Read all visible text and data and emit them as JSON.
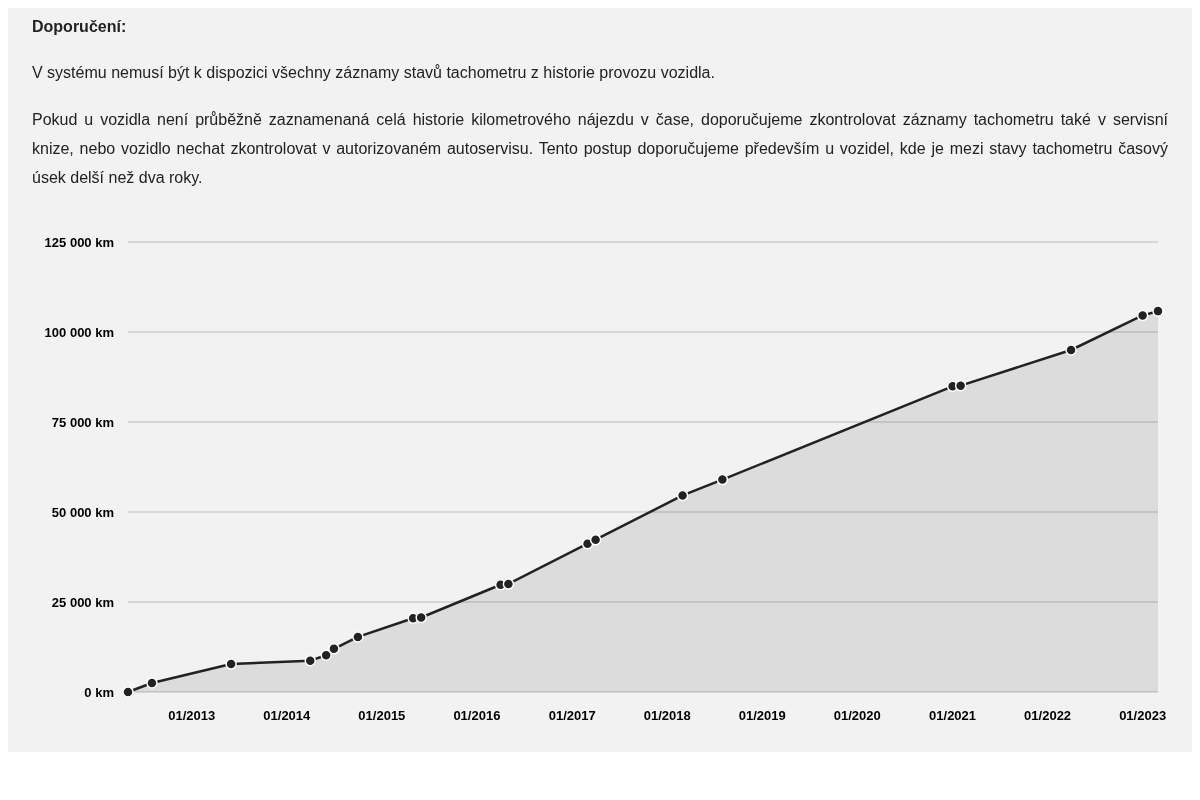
{
  "chart_data": {
    "type": "area",
    "title": "Doporučení:",
    "annotations": [
      "V systému nemusí být k dispozici všechny záznamy stavů tachometru z historie provozu vozidla.",
      "Pokud u vozidla není průběžně zaznamenaná celá historie kilometrového nájezdu v čase, doporučujeme zkontrolovat záznamy tachometru také v servisní knize, nebo vozidlo nechat zkontrolovat v autorizovaném autoservisu. Tento postup doporučujeme především u vozidel, kde je mezi stavy tachometru časový úsek delší než dva roky."
    ],
    "x": [
      "2012-05",
      "2012-08",
      "2013-06",
      "2014-04",
      "2014-06",
      "2014-07",
      "2014-10",
      "2015-05",
      "2015-06",
      "2016-04",
      "2016-05",
      "2017-03",
      "2017-04",
      "2018-03",
      "2018-08",
      "2021-01",
      "2021-02",
      "2022-04",
      "2023-01",
      "2023-03"
    ],
    "series": [
      {
        "color": "#222222",
        "values": [
          0,
          2500,
          7800,
          8700,
          10200,
          12000,
          15300,
          20500,
          20700,
          29800,
          30000,
          41200,
          42300,
          54600,
          59000,
          84900,
          85100,
          95000,
          104600,
          105800
        ]
      }
    ],
    "xlim": [
      "2012-05",
      "2023-03"
    ],
    "xticks": [
      {
        "value": "2013-01",
        "label": "01/2013"
      },
      {
        "value": "2014-01",
        "label": "01/2014"
      },
      {
        "value": "2015-01",
        "label": "01/2015"
      },
      {
        "value": "2016-01",
        "label": "01/2016"
      },
      {
        "value": "2017-01",
        "label": "01/2017"
      },
      {
        "value": "2018-01",
        "label": "01/2018"
      },
      {
        "value": "2019-01",
        "label": "01/2019"
      },
      {
        "value": "2020-01",
        "label": "01/2020"
      },
      {
        "value": "2021-01",
        "label": "01/2021"
      },
      {
        "value": "2022-01",
        "label": "01/2022"
      },
      {
        "value": "2023-01",
        "label": "01/2023"
      }
    ],
    "ylim": [
      0,
      125000
    ],
    "yticks": [
      {
        "value": 0,
        "label": "0 km"
      },
      {
        "value": 25000,
        "label": "25 000 km"
      },
      {
        "value": 50000,
        "label": "50 000 km"
      },
      {
        "value": 75000,
        "label": "75 000 km"
      },
      {
        "value": 100000,
        "label": "100 000 km"
      },
      {
        "value": 125000,
        "label": "125 000 km"
      }
    ],
    "grid": "y",
    "marker": "circle",
    "line_style": "solid"
  }
}
